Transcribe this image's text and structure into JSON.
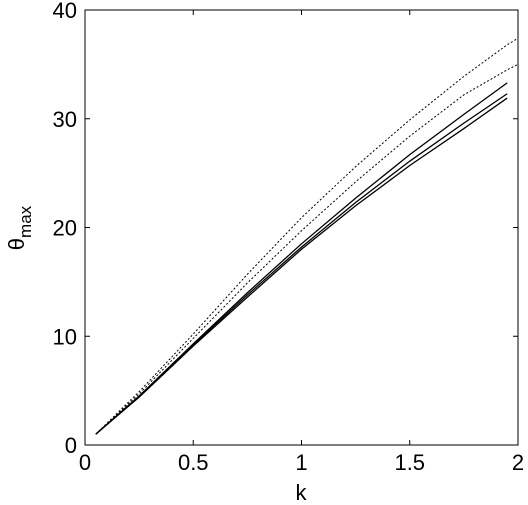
{
  "chart_data": {
    "type": "line",
    "xlabel": "k",
    "ylabel": "θ",
    "ylabel_sub": "max",
    "x": [
      0.05,
      0.25,
      0.5,
      0.75,
      1,
      1.25,
      1.5,
      1.75,
      1.95,
      2
    ],
    "series": [
      {
        "color": "#000000",
        "style": "dotted",
        "values": [
          1,
          4.9,
          10.2,
          15.7,
          20.9,
          25.6,
          29.9,
          33.9,
          36.8,
          37.4
        ]
      },
      {
        "color": "#000000",
        "style": "dotted",
        "values": [
          1,
          4.7,
          9.8,
          14.9,
          19.7,
          24.2,
          28.4,
          32.2,
          34.5,
          35.0
        ]
      },
      {
        "color": "#000000",
        "style": "solid",
        "values": [
          1,
          4.5,
          9.3,
          14.0,
          18.5,
          22.7,
          26.7,
          30.4,
          33.3,
          null
        ]
      },
      {
        "color": "#000000",
        "style": "solid",
        "values": [
          1,
          4.5,
          9.2,
          13.8,
          18.2,
          22.3,
          26.1,
          29.6,
          32.3,
          null
        ]
      },
      {
        "color": "#000000",
        "style": "solid",
        "values": [
          1,
          4.4,
          9.1,
          13.6,
          18.0,
          22.0,
          25.7,
          29.1,
          31.9,
          null
        ]
      }
    ],
    "xlim": [
      0,
      2
    ],
    "xticks": [
      0,
      0.5,
      1,
      1.5,
      2
    ],
    "ylim": [
      0,
      40
    ],
    "yticks": [
      0,
      10,
      20,
      30,
      40
    ],
    "grid": false
  }
}
